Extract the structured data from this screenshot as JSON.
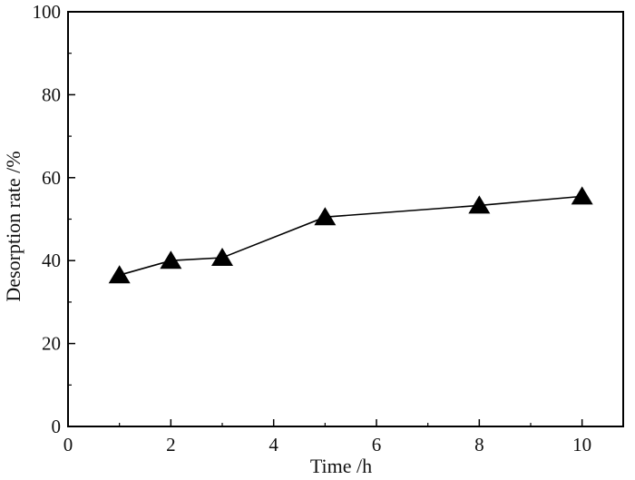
{
  "chart_data": {
    "type": "line",
    "title": "",
    "xlabel": "Time /h",
    "ylabel": "Desorption rate /%",
    "xlim": [
      0,
      10.8
    ],
    "ylim": [
      0,
      100
    ],
    "x_ticks": [
      0,
      2,
      4,
      6,
      8,
      10
    ],
    "y_ticks": [
      0,
      20,
      40,
      60,
      80,
      100
    ],
    "grid": false,
    "legend": "none",
    "marker": "filled-triangle",
    "line_color": "#000000",
    "series": [
      {
        "x": [
          1,
          2,
          3,
          5,
          8,
          10
        ],
        "y": [
          36.5,
          40.0,
          40.7,
          50.5,
          53.3,
          55.5
        ]
      }
    ]
  }
}
